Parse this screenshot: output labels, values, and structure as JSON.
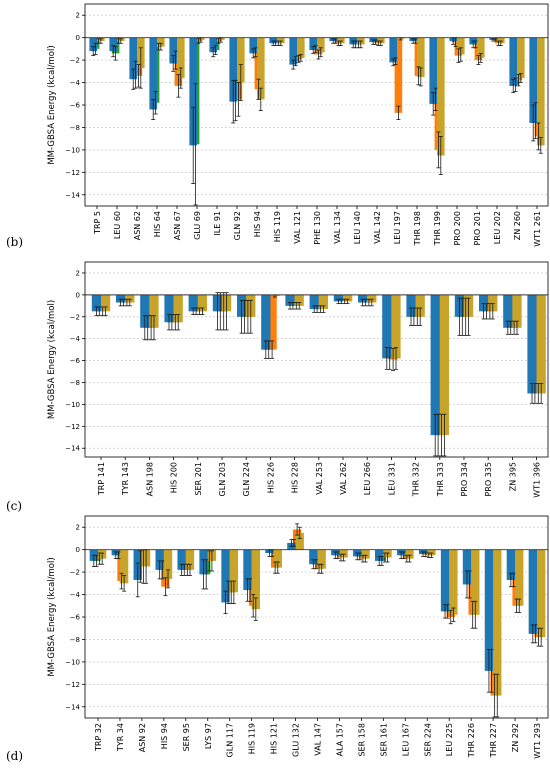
{
  "chart_data": [
    {
      "type": "bar",
      "panel_label": "(b)",
      "ylabel": "MM-GBSA Energy (kcal/mol)",
      "ylim": [
        -15,
        3
      ],
      "yticks": [
        2,
        0,
        -2,
        -4,
        -6,
        -8,
        -10,
        -12,
        -14
      ],
      "ytick_labels": [
        "2",
        "0",
        "−2",
        "−4",
        "−6",
        "−8",
        "−10",
        "−12",
        "−14"
      ],
      "grid": true,
      "categories": [
        "TRP 5",
        "LEU 60",
        "ASN 62",
        "HIS 64",
        "ASN 67",
        "GLU 69",
        "ILE 91",
        "GLN 92",
        "HIS 94",
        "HIS 119",
        "VAL 121",
        "PHE 130",
        "VAL 134",
        "LEU 140",
        "VAL 142",
        "LEU 197",
        "THR 198",
        "THR 199",
        "PRO 200",
        "PRO 201",
        "LEU 202",
        "ZN 260",
        "WT1 261"
      ],
      "series": [
        {
          "color": "#1f77b4",
          "values": [
            -1.2,
            -1.2,
            -3.7,
            -6.4,
            -2.3,
            -9.6,
            -1.3,
            -5.7,
            -1.4,
            -0.5,
            -2.4,
            -1.1,
            -0.3,
            -0.6,
            -0.4,
            -2.2,
            -0.3,
            -5.9,
            -0.3,
            -0.6,
            -0.2,
            -4.3,
            -7.6
          ],
          "errors": [
            0.4,
            0.5,
            0.9,
            0.9,
            0.7,
            3.4,
            0.4,
            1.9,
            0.4,
            0.2,
            0.4,
            0.3,
            0.2,
            0.3,
            0.2,
            0.3,
            0.2,
            1.0,
            0.3,
            0.3,
            0.1,
            0.6,
            1.6
          ]
        },
        {
          "color": "#2ca02c",
          "values": [
            -1.0,
            -1.4,
            -3.3,
            -5.8,
            -2.0,
            -9.5,
            -1.1,
            -5.6,
            -1.3,
            -0.5,
            -2.1,
            -1.0,
            -0.3,
            -0.6,
            -0.4,
            -2.1,
            -0.3,
            -5.5,
            -0.4,
            -0.6,
            -0.2,
            -4.2,
            -7.4
          ],
          "errors": [
            0.5,
            0.6,
            1.2,
            1.0,
            0.8,
            5.4,
            0.4,
            1.8,
            0.4,
            0.2,
            0.4,
            0.3,
            0.2,
            0.3,
            0.2,
            0.3,
            0.2,
            1.0,
            0.4,
            0.3,
            0.1,
            0.6,
            1.6
          ]
        },
        {
          "color": "#ff7f0e",
          "values": [
            -0.3,
            -0.3,
            -3.4,
            -0.8,
            -4.3,
            -0.3,
            -0.3,
            -5.5,
            -4.6,
            -0.5,
            -1.9,
            -1.5,
            -0.5,
            -0.6,
            -0.5,
            -6.7,
            -3.4,
            -10.0,
            -1.6,
            -2.0,
            -0.5,
            -3.8,
            -8.8
          ],
          "errors": [
            0.2,
            0.2,
            1.0,
            0.3,
            1.0,
            0.2,
            0.2,
            1.5,
            0.9,
            0.2,
            0.3,
            0.4,
            0.2,
            0.3,
            0.2,
            0.6,
            0.8,
            1.6,
            0.6,
            0.4,
            0.2,
            0.5,
            1.2
          ]
        },
        {
          "color": "#c8a42a",
          "values": [
            -0.3,
            -0.3,
            -2.7,
            -0.8,
            -3.6,
            -0.2,
            -0.2,
            -4.0,
            -5.5,
            -0.5,
            -1.8,
            -1.3,
            -0.5,
            -0.6,
            -0.5,
            -0.1,
            -3.5,
            -10.5,
            -1.5,
            -1.8,
            -0.5,
            -3.6,
            -9.6
          ],
          "errors": [
            0.2,
            0.2,
            1.8,
            0.3,
            0.9,
            0.2,
            0.2,
            1.6,
            1.0,
            0.2,
            0.3,
            0.4,
            0.2,
            0.3,
            0.2,
            0.1,
            0.8,
            1.7,
            0.6,
            0.4,
            0.2,
            0.4,
            0.7
          ]
        }
      ]
    },
    {
      "type": "bar",
      "panel_label": "(c)",
      "ylabel": "MM-GBSA Energy (kcal/mol)",
      "ylim": [
        -14.8,
        3
      ],
      "yticks": [
        2,
        0,
        -2,
        -4,
        -6,
        -8,
        -10,
        -12,
        -14
      ],
      "ytick_labels": [
        "2",
        "0",
        "−2",
        "−4",
        "−6",
        "−8",
        "−10",
        "−12",
        "−14"
      ],
      "grid": true,
      "categories": [
        "TRP 141",
        "TYR 143",
        "ASN 198",
        "HIS 200",
        "SER 201",
        "GLN 203",
        "GLN 224",
        "HIS 226",
        "HIS 228",
        "VAL 253",
        "VAL 262",
        "LEU 266",
        "LEU 331",
        "THR 332",
        "THR 333",
        "PRO 334",
        "PRO 335",
        "ZN 395",
        "WT1 396"
      ],
      "series": [
        {
          "color": "#1f77b4",
          "values": [
            -1.5,
            -0.7,
            -3.0,
            -2.5,
            -1.5,
            -1.5,
            -2.0,
            -5.0,
            -1.0,
            -1.3,
            -0.6,
            -0.7,
            -5.8,
            -2.0,
            -12.8,
            -2.0,
            -1.5,
            -3.0,
            -9.0
          ],
          "errors": [
            0.4,
            0.3,
            1.1,
            0.7,
            0.3,
            1.7,
            1.5,
            0.8,
            0.3,
            0.3,
            0.2,
            0.3,
            1.0,
            0.8,
            1.9,
            1.7,
            0.7,
            0.6,
            0.9
          ]
        },
        {
          "color": "#2ca02c",
          "values": [
            -1.5,
            -0.7,
            -3.0,
            -2.5,
            -1.5,
            -1.5,
            -2.0,
            -5.0,
            -1.0,
            -1.3,
            -0.6,
            -0.7,
            -5.8,
            -2.0,
            -12.8,
            -2.0,
            -1.5,
            -3.0,
            -9.0
          ],
          "errors": [
            0.4,
            0.3,
            1.1,
            0.7,
            0.3,
            1.7,
            1.5,
            0.8,
            0.3,
            0.3,
            0.2,
            0.3,
            1.0,
            0.8,
            1.9,
            1.7,
            0.7,
            0.6,
            0.9
          ]
        },
        {
          "color": "#ff7f0e",
          "values": [
            -1.5,
            -0.7,
            -3.0,
            -2.5,
            -1.5,
            -1.5,
            -2.0,
            -5.0,
            -1.0,
            -1.3,
            -0.6,
            -0.7,
            -5.9,
            -2.0,
            -12.8,
            -2.0,
            -1.5,
            -3.0,
            -9.0
          ],
          "errors": [
            0.4,
            0.3,
            1.1,
            0.7,
            0.3,
            1.7,
            1.5,
            0.8,
            0.3,
            0.3,
            0.2,
            0.3,
            1.0,
            0.8,
            1.9,
            1.7,
            0.7,
            0.6,
            0.9
          ]
        },
        {
          "color": "#c8a42a",
          "values": [
            -1.5,
            -0.7,
            -3.0,
            -2.5,
            -1.5,
            -1.5,
            -2.0,
            -0.1,
            -1.0,
            -1.3,
            -0.6,
            -0.7,
            -5.8,
            -2.0,
            -12.8,
            -2.0,
            -1.5,
            -3.0,
            -9.0
          ],
          "errors": [
            0.4,
            0.3,
            1.1,
            0.7,
            0.3,
            1.7,
            1.5,
            0.1,
            0.3,
            0.3,
            0.2,
            0.3,
            1.0,
            0.8,
            1.9,
            1.7,
            0.7,
            0.6,
            0.9
          ]
        }
      ]
    },
    {
      "type": "bar",
      "panel_label": "(d)",
      "ylabel": "MM-GBSA Energy (kcal/mol)",
      "ylim": [
        -15,
        3
      ],
      "yticks": [
        2,
        0,
        -2,
        -4,
        -6,
        -8,
        -10,
        -12,
        -14
      ],
      "ytick_labels": [
        "2",
        "0",
        "−2",
        "−4",
        "−6",
        "−8",
        "−10",
        "−12",
        "−14"
      ],
      "grid": true,
      "categories": [
        "TRP 32",
        "TYR 34",
        "ASN 92",
        "HIS 94",
        "SER 95",
        "LYS 97",
        "GLN 117",
        "HIS 119",
        "HIS 121",
        "GLU 132",
        "VAL 147",
        "ALA 157",
        "SER 158",
        "SER 161",
        "LEU 167",
        "SER 224",
        "LEU 225",
        "THR 226",
        "THR 227",
        "ZN 292",
        "WT1 293"
      ],
      "series": [
        {
          "color": "#1f77b4",
          "values": [
            -1.0,
            -0.5,
            -2.7,
            -1.8,
            -1.8,
            -2.2,
            -4.7,
            -3.6,
            -0.3,
            0.6,
            -1.3,
            -0.5,
            -0.6,
            -1.0,
            -0.5,
            -0.4,
            -5.5,
            -3.1,
            -10.8,
            -2.7,
            -7.5
          ],
          "errors": [
            0.5,
            0.3,
            1.5,
            0.8,
            0.5,
            1.3,
            1.0,
            1.0,
            0.3,
            0.3,
            0.4,
            0.3,
            0.3,
            0.4,
            0.3,
            0.2,
            0.6,
            1.2,
            1.9,
            0.6,
            0.8
          ]
        },
        {
          "color": "#2ca02c",
          "values": [
            -1.0,
            -0.5,
            -1.5,
            -1.8,
            -1.8,
            -2.2,
            -3.8,
            -3.6,
            -0.3,
            0.6,
            -1.3,
            -0.5,
            -0.6,
            -1.0,
            -0.5,
            -0.4,
            -5.5,
            -3.1,
            -10.8,
            -2.7,
            -7.5
          ],
          "errors": [
            0.5,
            0.3,
            1.4,
            0.8,
            0.5,
            1.3,
            1.0,
            1.0,
            0.3,
            0.3,
            0.4,
            0.3,
            0.3,
            0.4,
            0.3,
            0.2,
            0.6,
            1.2,
            1.9,
            0.6,
            0.8
          ]
        },
        {
          "color": "#ff7f0e",
          "values": [
            -0.8,
            -2.8,
            -1.5,
            -3.3,
            -1.8,
            -1.0,
            -3.8,
            -5.0,
            -1.6,
            1.8,
            -1.7,
            -0.7,
            -0.8,
            -0.7,
            -0.8,
            -0.5,
            -6.0,
            -5.8,
            -13.0,
            -5.0,
            -7.8
          ],
          "errors": [
            0.5,
            0.7,
            1.5,
            0.8,
            0.5,
            0.9,
            1.0,
            1.0,
            0.5,
            0.5,
            0.4,
            0.3,
            0.3,
            0.4,
            0.3,
            0.2,
            0.6,
            1.2,
            1.9,
            0.6,
            0.8
          ]
        },
        {
          "color": "#c8a42a",
          "values": [
            -0.8,
            -3.0,
            -1.5,
            -2.6,
            -1.8,
            -1.0,
            -3.8,
            -5.3,
            -1.6,
            1.5,
            -1.7,
            -0.7,
            -0.8,
            -0.7,
            -0.8,
            -0.5,
            -5.8,
            -5.8,
            -13.0,
            -5.0,
            -7.8
          ],
          "errors": [
            0.5,
            0.7,
            1.5,
            0.8,
            0.5,
            0.9,
            1.0,
            1.0,
            0.5,
            0.5,
            0.4,
            0.3,
            0.3,
            0.4,
            0.3,
            0.2,
            0.6,
            1.2,
            1.9,
            0.6,
            0.8
          ]
        }
      ]
    }
  ]
}
